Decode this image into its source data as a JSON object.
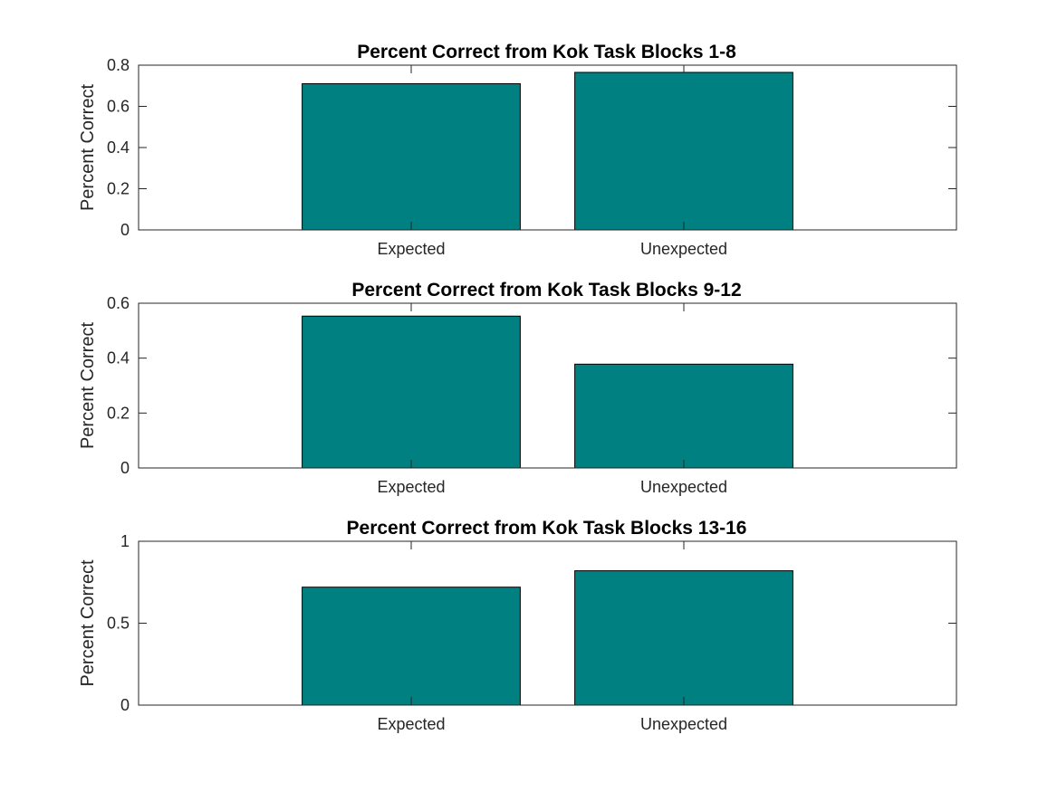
{
  "chart_data": [
    {
      "type": "bar",
      "title": "Percent Correct from Kok Task Blocks 1-8",
      "categories": [
        "Expected",
        "Unexpected"
      ],
      "values": [
        0.71,
        0.765
      ],
      "xlabel": "",
      "ylabel": "Percent Correct",
      "ylim": [
        0,
        0.8
      ],
      "yticks": [
        "0",
        "0.2",
        "0.4",
        "0.6",
        "0.8"
      ],
      "grid": false,
      "bar_color": "#008080"
    },
    {
      "type": "bar",
      "title": "Percent Correct from Kok Task Blocks 9-12",
      "categories": [
        "Expected",
        "Unexpected"
      ],
      "values": [
        0.553,
        0.378
      ],
      "xlabel": "",
      "ylabel": "Percent Correct",
      "ylim": [
        0,
        0.6
      ],
      "yticks": [
        "0",
        "0.2",
        "0.4",
        "0.6"
      ],
      "grid": false,
      "bar_color": "#008080"
    },
    {
      "type": "bar",
      "title": "Percent Correct from Kok Task Blocks 13-16",
      "categories": [
        "Expected",
        "Unexpected"
      ],
      "values": [
        0.72,
        0.82
      ],
      "xlabel": "",
      "ylabel": "Percent Correct",
      "ylim": [
        0,
        1
      ],
      "yticks": [
        "0",
        "0.5",
        "1"
      ],
      "grid": false,
      "bar_color": "#008080"
    }
  ]
}
